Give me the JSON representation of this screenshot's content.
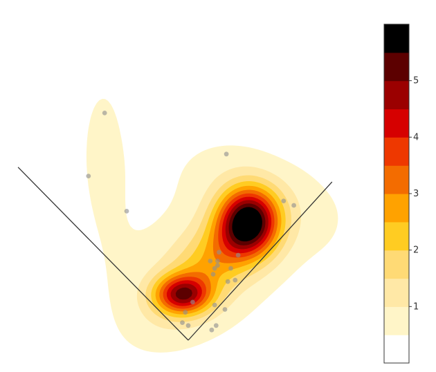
{
  "chart_data": {
    "type": "heatmap",
    "subtype": "kernel-density-contour",
    "title": "",
    "xlabel": "",
    "ylabel": "",
    "colorbar": {
      "placement": "right",
      "range": [
        0,
        6
      ],
      "levels": [
        0,
        0.5,
        1,
        1.5,
        2,
        2.5,
        3,
        3.5,
        4,
        4.5,
        5,
        5.5,
        6
      ],
      "colors": [
        "#ffffff",
        "#fff5c8",
        "#ffe8a6",
        "#ffda75",
        "#ffcc22",
        "#ffa200",
        "#f36c00",
        "#ee3800",
        "#d60000",
        "#9b0000",
        "#5c0000",
        "#000000"
      ],
      "tick_values": [
        1,
        2,
        3,
        4,
        5
      ],
      "tick_labels": [
        "1",
        "2",
        "3",
        "4",
        "5"
      ]
    },
    "overlay": {
      "type": "v-lines",
      "line_color": "#333333",
      "vertex": [
        0,
        0
      ],
      "left_end": [
        -1.16,
        1.18
      ],
      "right_end": [
        0.98,
        1.08
      ]
    },
    "points": [
      [
        -0.57,
        1.55
      ],
      [
        -0.68,
        1.12
      ],
      [
        -0.42,
        0.88
      ],
      [
        0.26,
        1.27
      ],
      [
        0.65,
        0.95
      ],
      [
        0.72,
        0.92
      ],
      [
        0.21,
        0.6
      ],
      [
        0.34,
        0.58
      ],
      [
        0.15,
        0.54
      ],
      [
        0.2,
        0.54
      ],
      [
        0.2,
        0.51
      ],
      [
        0.29,
        0.49
      ],
      [
        0.18,
        0.49
      ],
      [
        0.17,
        0.45
      ],
      [
        0.32,
        0.41
      ],
      [
        0.27,
        0.4
      ],
      [
        0.03,
        0.26
      ],
      [
        0.25,
        0.21
      ],
      [
        0.19,
        0.1
      ],
      [
        0.16,
        0.07
      ],
      [
        -0.02,
        0.19
      ],
      [
        -0.04,
        0.12
      ],
      [
        0.18,
        0.24
      ],
      [
        0,
        0.1
      ]
    ],
    "density_peaks": [
      {
        "x": 0.41,
        "y": 0.81,
        "value": 5.9
      },
      {
        "x": -0.04,
        "y": 0.31,
        "value": 4.7
      }
    ]
  }
}
